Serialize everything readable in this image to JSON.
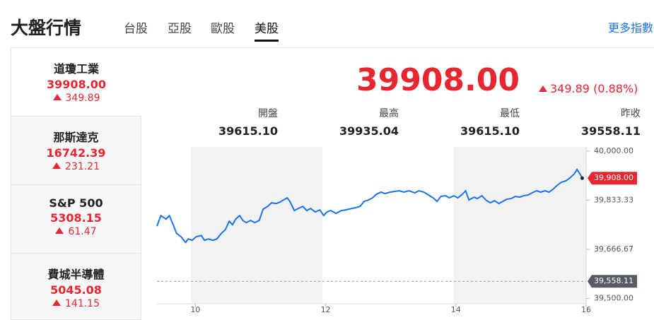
{
  "header": {
    "title": "大盤行情",
    "tabs": [
      "台股",
      "亞股",
      "歐股",
      "美股"
    ],
    "active_tab": "美股",
    "more_link": "更多指數"
  },
  "sidebar": {
    "items": [
      {
        "name": "道瓊工業",
        "price": "39908.00",
        "change": "349.89"
      },
      {
        "name": "那斯達克",
        "price": "16742.39",
        "change": "231.21"
      },
      {
        "name": "S&P 500",
        "price": "5308.15",
        "change": "61.47"
      },
      {
        "name": "費城半導體",
        "price": "5045.08",
        "change": "141.15"
      }
    ]
  },
  "main": {
    "price": "39908.00",
    "change": "349.89 (0.88%)",
    "stats": [
      {
        "label": "開盤",
        "value": "39615.10"
      },
      {
        "label": "最高",
        "value": "39935.04"
      },
      {
        "label": "最低",
        "value": "39615.10"
      },
      {
        "label": "昨收",
        "value": "39558.11"
      }
    ]
  },
  "chart": {
    "type": "line",
    "color": "#1a73e8",
    "x": [
      9.41,
      9.47,
      9.55,
      9.6,
      9.66,
      9.71,
      9.78,
      9.85,
      9.89,
      9.95,
      10.01,
      10.09,
      10.14,
      10.2,
      10.27,
      10.33,
      10.4,
      10.46,
      10.52,
      10.57,
      10.62,
      10.68,
      10.73,
      10.78,
      10.85,
      10.91,
      10.98,
      11.04,
      11.11,
      11.17,
      11.24,
      11.3,
      11.37,
      11.41,
      11.45,
      11.52,
      11.58,
      11.65,
      11.71,
      11.77,
      11.84,
      11.91,
      11.97,
      12.02,
      12.08,
      12.16,
      12.24,
      12.31,
      12.4,
      12.46,
      12.53,
      12.59,
      12.66,
      12.72,
      12.78,
      12.85,
      12.91,
      12.99,
      13.06,
      13.13,
      13.2,
      13.28,
      13.37,
      13.43,
      13.51,
      13.58,
      13.65,
      13.71,
      13.77,
      13.84,
      13.9,
      13.97,
      14.03,
      14.1,
      14.15,
      14.2,
      14.28,
      14.33,
      14.4,
      14.46,
      14.53,
      14.59,
      14.66,
      14.72,
      14.78,
      14.85,
      14.91,
      14.98,
      15.04,
      15.11,
      15.17,
      15.24,
      15.3,
      15.37,
      15.43,
      15.49,
      15.56,
      15.62,
      15.69,
      15.75,
      15.82,
      15.86,
      15.91,
      15.94
    ],
    "values": [
      39745.2,
      39781.2,
      39769.2,
      39781.2,
      39750,
      39721.1,
      39709.1,
      39689.9,
      39701.9,
      39697.1,
      39709.1,
      39713.9,
      39697.1,
      39701.9,
      39697.1,
      39701.9,
      39721.1,
      39733.2,
      39762,
      39750,
      39769.2,
      39781.2,
      39764.4,
      39757.2,
      39764.4,
      39757.2,
      39764.4,
      39802.9,
      39812.5,
      39824.5,
      39822.1,
      39826.9,
      39836.5,
      39841.3,
      39829.3,
      39798.1,
      39805.3,
      39812.5,
      39798.1,
      39805.3,
      39793.3,
      39800.5,
      39781.2,
      39793.3,
      39798.1,
      39788.4,
      39798.1,
      39800.5,
      39805.3,
      39807.7,
      39812.5,
      39829.3,
      39834.1,
      39841.3,
      39853.4,
      39860.6,
      39855.8,
      39860.6,
      39863,
      39865.4,
      39860.6,
      39865.4,
      39858.2,
      39865.4,
      39860.6,
      39851,
      39841.3,
      39829.3,
      39846.1,
      39848.5,
      39841.3,
      39848.5,
      39841.3,
      39853.4,
      39865.4,
      39834.1,
      39843.7,
      39838.9,
      39848.5,
      39834.1,
      39824.5,
      39831.7,
      39822.1,
      39829.3,
      39836.5,
      39838.9,
      39846.1,
      39843.7,
      39848.5,
      39851,
      39858.2,
      39865.4,
      39860.6,
      39865.4,
      39860.6,
      39870.2,
      39884.6,
      39894.2,
      39899,
      39908.6,
      39923.1,
      39937.5,
      39920.7,
      39908
    ],
    "xlim": [
      9.41,
      16
    ],
    "ylim": [
      39482,
      40014
    ],
    "xticks": [
      10,
      12,
      14,
      16
    ],
    "yticks": [
      {
        "value": 40000,
        "label": "40,000.00"
      },
      {
        "value": 39833.33,
        "label": "39,833.33"
      },
      {
        "value": 39666.67,
        "label": "39,666.67"
      },
      {
        "value": 39500,
        "label": "39,500.00"
      }
    ],
    "last": {
      "value": 39908,
      "label": "39,908.00"
    },
    "prev_close": {
      "value": 39558.11,
      "label": "39,558.11"
    }
  }
}
